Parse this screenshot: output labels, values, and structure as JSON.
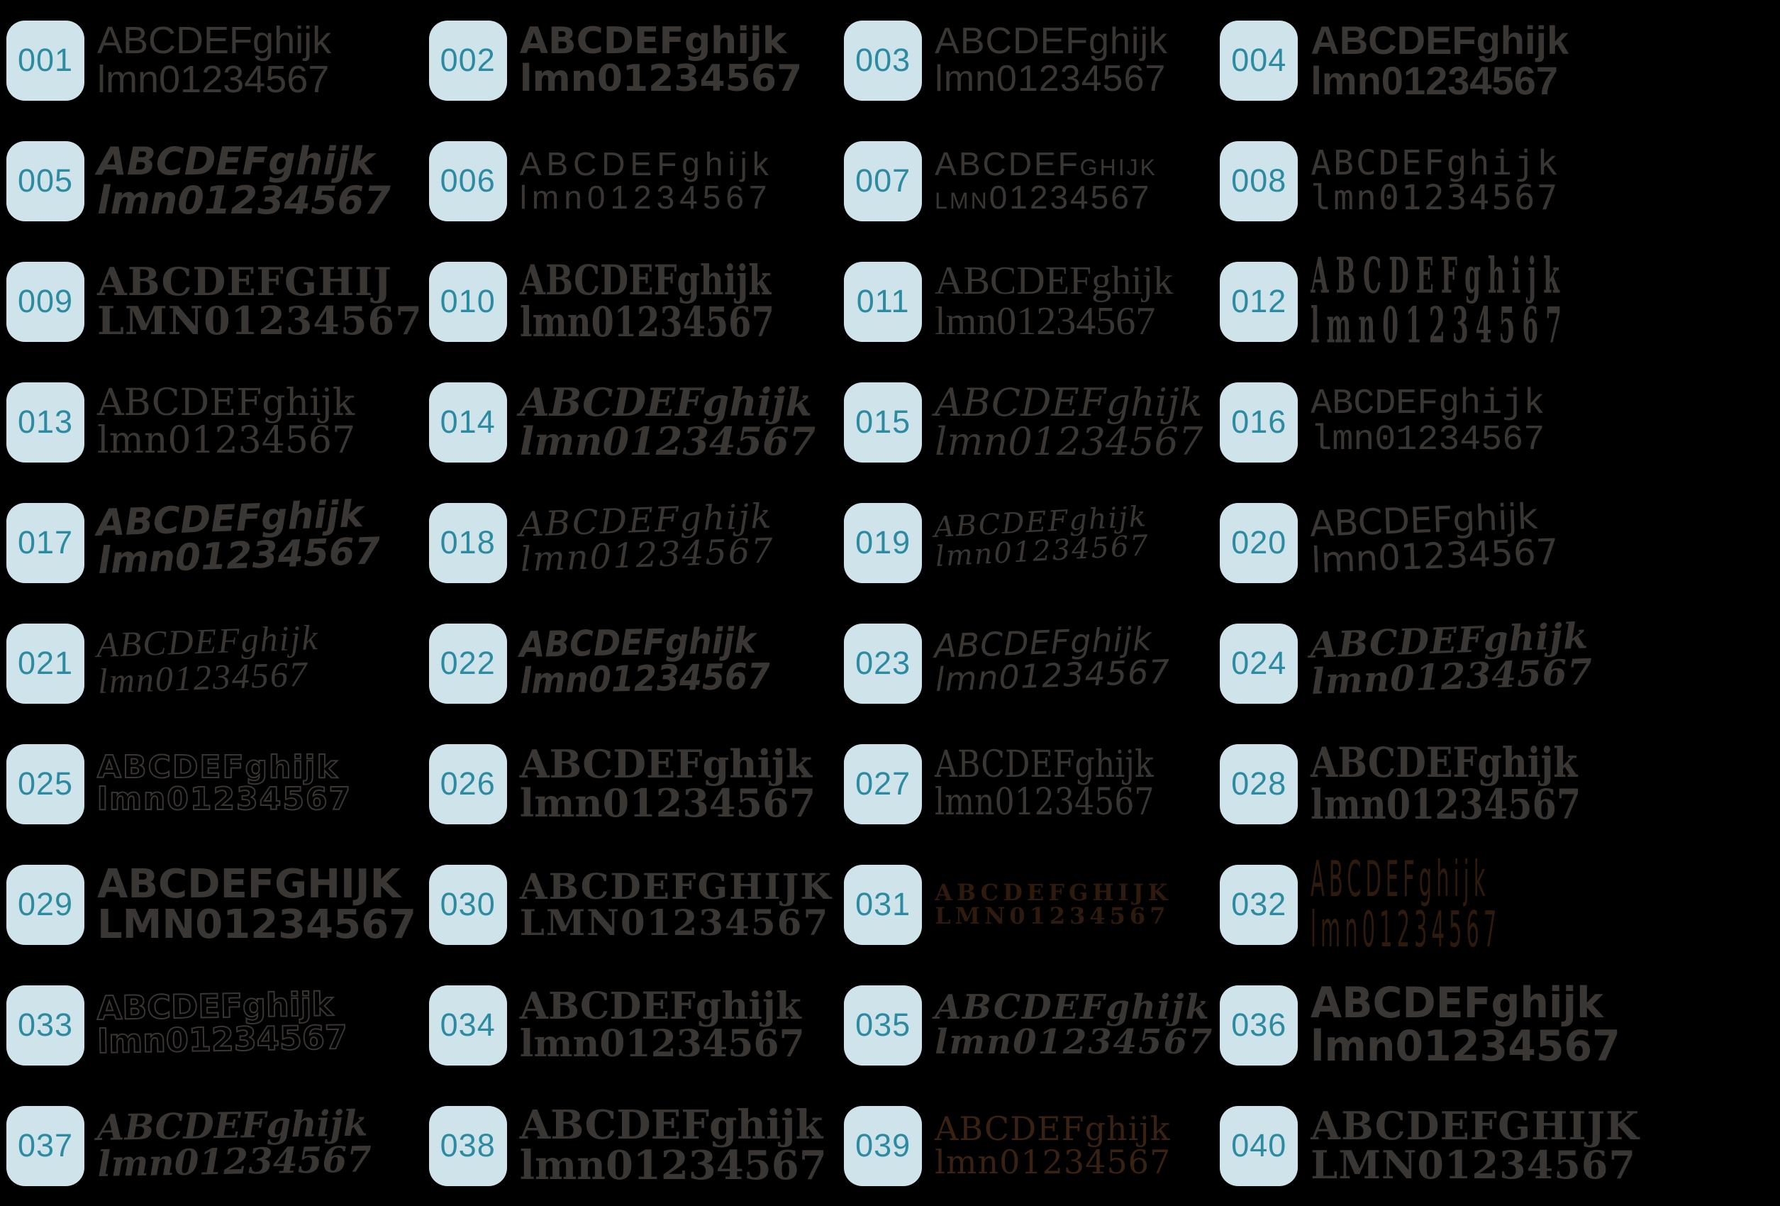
{
  "page": {
    "background": "#000000"
  },
  "badge": {
    "background": "#cfe4ea",
    "number_color": "#2d8ba1"
  },
  "defaults": {
    "text_color": "#3a3634"
  },
  "cells": [
    {
      "number": "001",
      "line1": "ABCDEFghijk",
      "line2": "lmn01234567",
      "style": "geometric sans"
    },
    {
      "number": "002",
      "line1": "ABCDEFghijk",
      "line2": "lmn01234567",
      "style": "rounded bold sans"
    },
    {
      "number": "003",
      "line1": "ABCDEFghijk",
      "line2": "lmn01234567",
      "style": "art deco sans"
    },
    {
      "number": "004",
      "line1": "ABCDEFghijk",
      "line2": "lmn01234567",
      "style": "bold geometric sans"
    },
    {
      "number": "005",
      "line1": "ABCDEFghijk",
      "line2": "lmn01234567",
      "style": "bold italic sans"
    },
    {
      "number": "006",
      "line1": "ABCDEFghijk",
      "line2": "lmn01234567",
      "style": "light wide sans"
    },
    {
      "number": "007",
      "line1": "ABCDEFghijk",
      "line2": "lmn01234567",
      "style": "deco small caps"
    },
    {
      "number": "008",
      "line1": "ABCDEFghijk",
      "line2": "lmn01234567",
      "style": "rounded monospace"
    },
    {
      "number": "009",
      "line1": "ABCDEFGHIJ",
      "line2": "LMN01234567",
      "style": "bold slab serif caps"
    },
    {
      "number": "010",
      "line1": "ABCDEFghijk",
      "line2": "lmn01234567",
      "style": "condensed slab serif"
    },
    {
      "number": "011",
      "line1": "ABCDEFghijk",
      "line2": "lmn01234567",
      "style": "classic serif"
    },
    {
      "number": "012",
      "line1": "ABCDEFghijk",
      "line2": "lmn01234567",
      "style": "ultra condensed serif"
    },
    {
      "number": "013",
      "line1": "ABCDEFghijk",
      "line2": "lmn01234567",
      "style": "century serif"
    },
    {
      "number": "014",
      "line1": "ABCDEFghijk",
      "line2": "lmn01234567",
      "style": "bold italic didone serif"
    },
    {
      "number": "015",
      "line1": "ABCDEFghijk",
      "line2": "lmn01234567",
      "style": "italic serif"
    },
    {
      "number": "016",
      "line1": "ABCDEFghijk",
      "line2": "lmn01234567",
      "style": "typewriter monospace"
    },
    {
      "number": "017",
      "line1": "ABCDEFghijk",
      "line2": "lmn01234567",
      "style": "bold brush script"
    },
    {
      "number": "018",
      "line1": "ABCDEFghijk",
      "line2": "lmn01234567",
      "style": "copperplate script"
    },
    {
      "number": "019",
      "line1": "ABCDEFghijk",
      "line2": "lmn01234567",
      "style": "fine copperplate script"
    },
    {
      "number": "020",
      "line1": "ABCDEFghijk",
      "line2": "lmn01234567",
      "style": "handwritten marker"
    },
    {
      "number": "021",
      "line1": "ABCDEFghijk",
      "line2": "lmn01234567",
      "style": "light casual script"
    },
    {
      "number": "022",
      "line1": "ABCDEFghijk",
      "line2": "lmn01234567",
      "style": "angular brush"
    },
    {
      "number": "023",
      "line1": "ABCDEFghijk",
      "line2": "lmn01234567",
      "style": "rounded handwriting"
    },
    {
      "number": "024",
      "line1": "ABCDEFghijk",
      "line2": "lmn01234567",
      "style": "bold flowing script"
    },
    {
      "number": "025",
      "line1": "ABCDEFghijk",
      "line2": "lmn01234567",
      "style": "outline bubble"
    },
    {
      "number": "026",
      "line1": "ABCDEFghijk",
      "line2": "lmn01234567",
      "style": "fat ornate serif"
    },
    {
      "number": "027",
      "line1": "ABCDEFghijk",
      "line2": "lmn01234567",
      "style": "fraktur blackletter"
    },
    {
      "number": "028",
      "line1": "ABCDEFghijk",
      "line2": "lmn01234567",
      "style": "bold condensed didone"
    },
    {
      "number": "029",
      "line1": "ABCDEFGHIJK",
      "line2": "LMN01234567",
      "style": "heavy square sans caps"
    },
    {
      "number": "030",
      "line1": "ABCDEFGHIJK",
      "line2": "LMN01234567",
      "style": "western tuscan caps"
    },
    {
      "number": "031",
      "line1": "ABCDEFGHIJK",
      "line2": "LMN01234567",
      "style": "small slab caps",
      "color": "#2e1b0e"
    },
    {
      "number": "032",
      "line1": "ABCDEFghijk",
      "line2": "lmn01234567",
      "style": "ultra condensed spike",
      "color": "#2e1b0e"
    },
    {
      "number": "033",
      "line1": "ABCDEFghijk",
      "line2": "lmn01234567",
      "style": "outline comic"
    },
    {
      "number": "034",
      "line1": "ABCDEFghijk",
      "line2": "lmn01234567",
      "style": "old english blackletter"
    },
    {
      "number": "035",
      "line1": "ABCDEFghijk",
      "line2": "lmn01234567",
      "style": "ronde script serif"
    },
    {
      "number": "036",
      "line1": "ABCDEFghijk",
      "line2": "lmn01234567",
      "style": "heavy condensed sans"
    },
    {
      "number": "037",
      "line1": "ABCDEFghijk",
      "line2": "lmn01234567",
      "style": "calligraphic italic"
    },
    {
      "number": "038",
      "line1": "ABCDEFghijk",
      "line2": "lmn01234567",
      "style": "heavy wedge serif"
    },
    {
      "number": "039",
      "line1": "ABCDEFghijk",
      "line2": "lmn01234567",
      "style": "quirky light serif",
      "color": "#3a2213"
    },
    {
      "number": "040",
      "line1": "ABCDEFGHIJK",
      "line2": "LMN01234567",
      "style": "heavy slab caps"
    }
  ]
}
